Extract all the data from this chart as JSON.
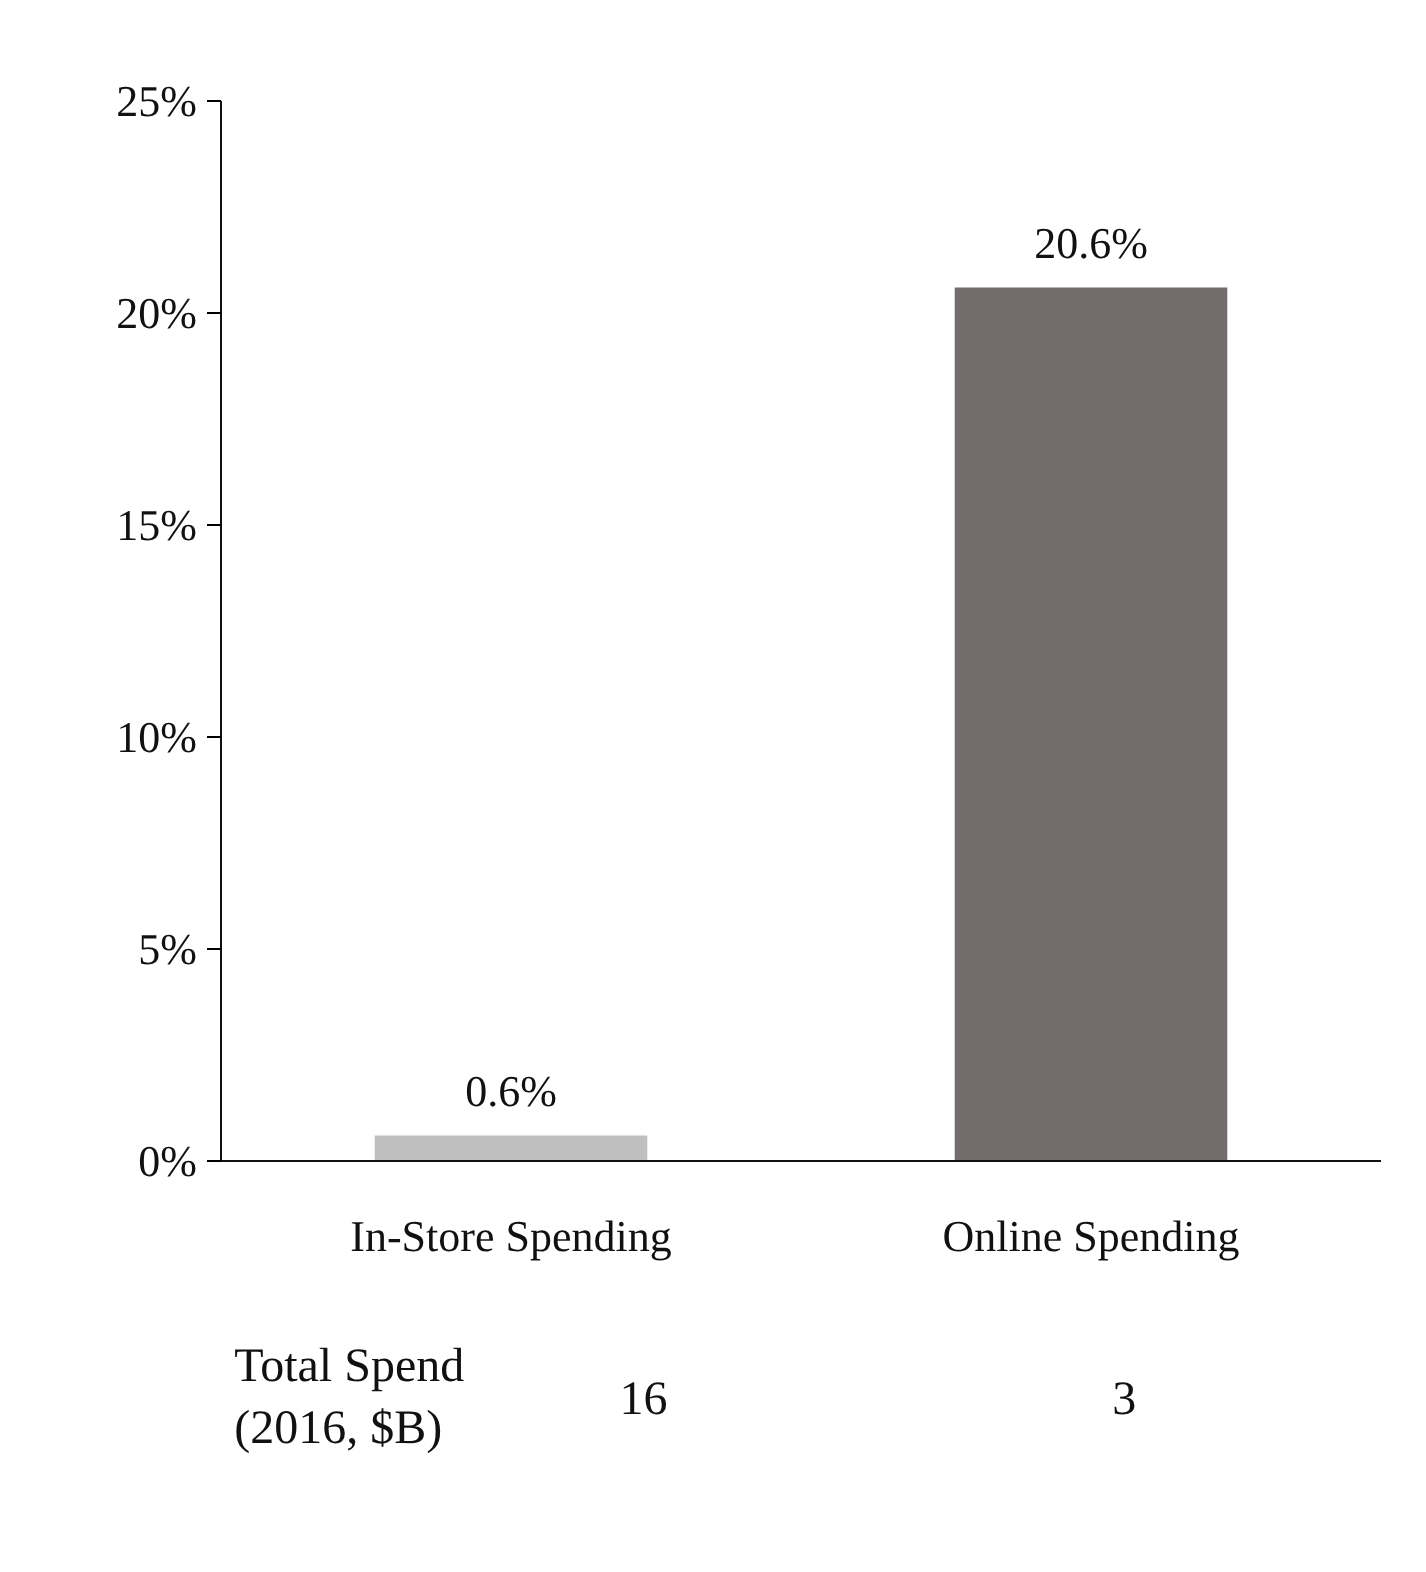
{
  "chart_data": {
    "type": "bar",
    "categories": [
      "In-Store Spending",
      "Online Spending"
    ],
    "values": [
      0.6,
      20.6
    ],
    "colors": [
      "#bfbfbf",
      "#726d6c"
    ],
    "ylim": [
      0,
      25
    ],
    "yticks": [
      {
        "value": 0,
        "label": "0%"
      },
      {
        "value": 5,
        "label": "5%"
      },
      {
        "value": 10,
        "label": "10%"
      },
      {
        "value": 15,
        "label": "15%"
      },
      {
        "value": 20,
        "label": "20%"
      },
      {
        "value": 25,
        "label": "25%"
      }
    ],
    "value_labels": [
      "0.6%",
      "20.6%"
    ],
    "grid": false,
    "annotations": [
      "Total Spend\n(2016, $B)",
      "16",
      "3"
    ]
  }
}
